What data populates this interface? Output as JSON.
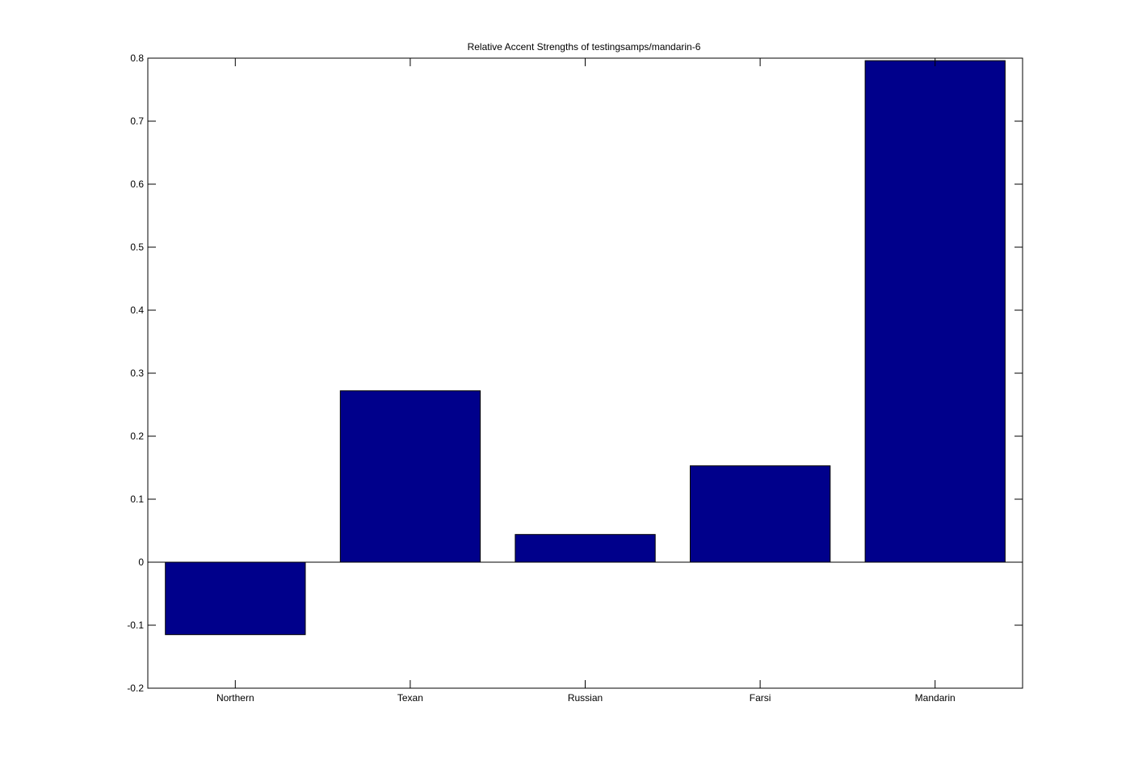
{
  "chart_data": {
    "type": "bar",
    "title": "Relative Accent Strengths of testingsamps/mandarin-6",
    "xlabel": "",
    "ylabel": "",
    "categories": [
      "Northern",
      "Texan",
      "Russian",
      "Farsi",
      "Mandarin"
    ],
    "values": [
      -0.115,
      0.272,
      0.044,
      0.153,
      0.796
    ],
    "ylim": [
      -0.2,
      0.8
    ],
    "yticks": [
      -0.2,
      -0.1,
      0,
      0.1,
      0.2,
      0.3,
      0.4,
      0.5,
      0.6,
      0.7,
      0.8
    ],
    "ytick_labels": [
      "-0.2",
      "-0.1",
      "0",
      "0.1",
      "0.2",
      "0.3",
      "0.4",
      "0.5",
      "0.6",
      "0.7",
      "0.8"
    ],
    "grid": false,
    "legend": "none",
    "colors": {
      "bar_fill": "#00008b",
      "bar_edge": "#000000",
      "axis": "#000000",
      "background": "#ffffff"
    }
  }
}
